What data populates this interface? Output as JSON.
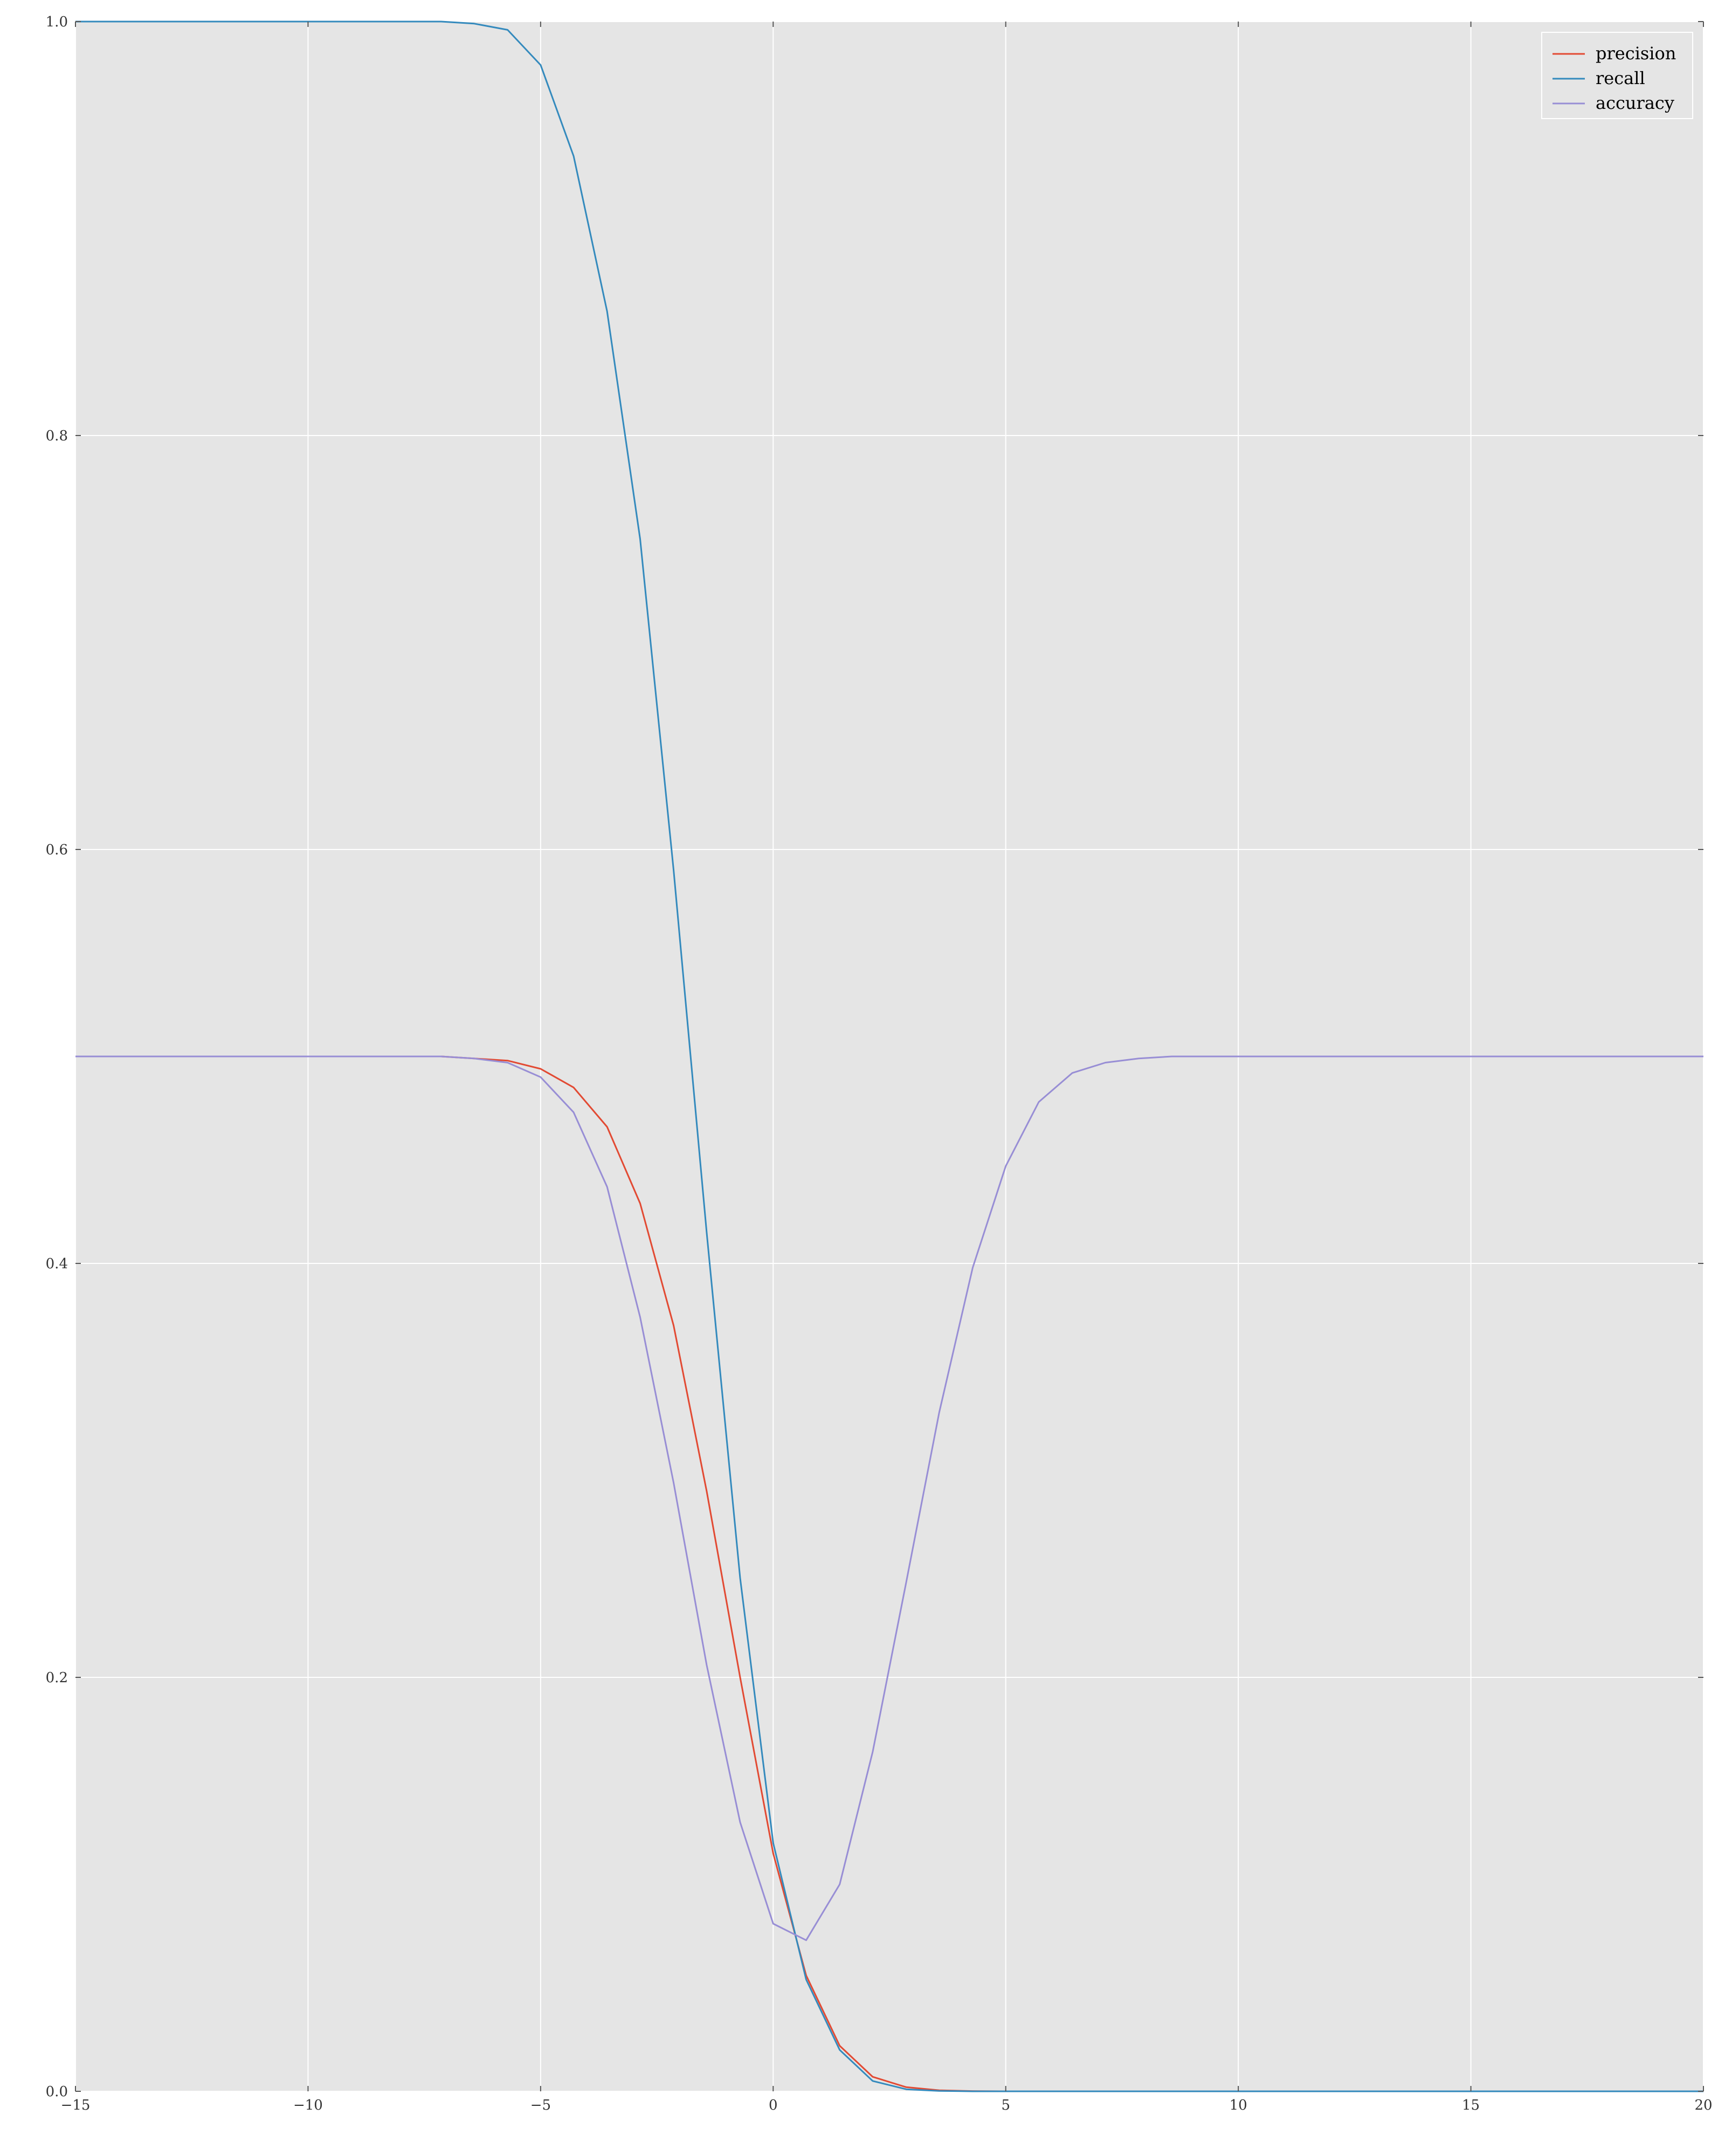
{
  "chart_data": {
    "type": "line",
    "title": "",
    "xlabel": "",
    "ylabel": "",
    "xlim": [
      -15,
      20
    ],
    "ylim": [
      0.0,
      1.0
    ],
    "xticks": [
      -15,
      -10,
      -5,
      0,
      5,
      10,
      15,
      20
    ],
    "xtick_labels": [
      "−15",
      "−10",
      "−5",
      "0",
      "5",
      "10",
      "15",
      "20"
    ],
    "yticks": [
      0.0,
      0.2,
      0.4,
      0.6,
      0.8,
      1.0
    ],
    "ytick_labels": [
      "0.0",
      "0.2",
      "0.4",
      "0.6",
      "0.8",
      "1.0"
    ],
    "grid": true,
    "legend_position": "top-right",
    "background": "#e5e5e5",
    "series": [
      {
        "name": "precision",
        "color": "#e24a33",
        "x": [
          -15,
          -14.29,
          -13.57,
          -12.86,
          -12.14,
          -11.43,
          -10.71,
          -10.0,
          -9.29,
          -8.57,
          -7.86,
          -7.14,
          -6.43,
          -5.71,
          -5.0,
          -4.29,
          -3.57,
          -2.86,
          -2.14,
          -1.43,
          -0.71,
          0.0,
          0.71,
          1.43,
          2.14,
          2.86,
          3.57,
          4.29,
          5.0,
          5.71,
          6.43,
          7.14,
          7.86,
          8.57,
          9.29,
          10.0,
          10.71,
          11.43,
          12.14,
          12.86,
          13.57,
          14.29,
          15.0,
          15.71,
          16.43,
          17.14,
          17.86,
          18.57,
          19.29,
          20.0
        ],
        "y": [
          0.5,
          0.5,
          0.5,
          0.5,
          0.5,
          0.5,
          0.5,
          0.5,
          0.5,
          0.5,
          0.5,
          0.5,
          0.499,
          0.498,
          0.494,
          0.485,
          0.466,
          0.429,
          0.37,
          0.29,
          0.2,
          0.115,
          0.056,
          0.022,
          0.007,
          0.002,
          0.0005,
          0.0001,
          0.0,
          0.0,
          0.0,
          0.0,
          0.0,
          0.0,
          0.0,
          0.0,
          0.0,
          0.0,
          0.0,
          0.0,
          0.0,
          0.0,
          0.0,
          0.0,
          0.0,
          0.0,
          0.0,
          0.0,
          0.0,
          0.0
        ]
      },
      {
        "name": "recall",
        "color": "#348abd",
        "x": [
          -15,
          -14.29,
          -13.57,
          -12.86,
          -12.14,
          -11.43,
          -10.71,
          -10.0,
          -9.29,
          -8.57,
          -7.86,
          -7.14,
          -6.43,
          -5.71,
          -5.0,
          -4.29,
          -3.57,
          -2.86,
          -2.14,
          -1.43,
          -0.71,
          0.0,
          0.71,
          1.43,
          2.14,
          2.86,
          3.57,
          4.29,
          5.0,
          5.71,
          6.43,
          7.14,
          7.86,
          8.57,
          9.29,
          10.0,
          10.71,
          11.43,
          12.14,
          12.86,
          13.57,
          14.29,
          15.0,
          15.71,
          16.43,
          17.14,
          17.86,
          18.57,
          19.29,
          20.0
        ],
        "y": [
          1.0,
          1.0,
          1.0,
          1.0,
          1.0,
          1.0,
          1.0,
          1.0,
          1.0,
          1.0,
          1.0,
          1.0,
          0.999,
          0.996,
          0.979,
          0.935,
          0.86,
          0.75,
          0.59,
          0.415,
          0.248,
          0.12,
          0.054,
          0.02,
          0.005,
          0.001,
          0.0002,
          0.0,
          0.0,
          0.0,
          0.0,
          0.0,
          0.0,
          0.0,
          0.0,
          0.0,
          0.0,
          0.0,
          0.0,
          0.0,
          0.0,
          0.0,
          0.0,
          0.0,
          0.0,
          0.0,
          0.0,
          0.0,
          0.0,
          0.0
        ]
      },
      {
        "name": "accuracy",
        "color": "#988ed5",
        "x": [
          -15,
          -14.29,
          -13.57,
          -12.86,
          -12.14,
          -11.43,
          -10.71,
          -10.0,
          -9.29,
          -8.57,
          -7.86,
          -7.14,
          -6.43,
          -5.71,
          -5.0,
          -4.29,
          -3.57,
          -2.86,
          -2.14,
          -1.43,
          -0.71,
          0.0,
          0.71,
          1.43,
          2.14,
          2.86,
          3.57,
          4.29,
          5.0,
          5.71,
          6.43,
          7.14,
          7.86,
          8.57,
          9.29,
          10.0,
          10.71,
          11.43,
          12.14,
          12.86,
          13.57,
          14.29,
          15.0,
          15.71,
          16.43,
          17.14,
          17.86,
          18.57,
          19.29,
          20.0
        ],
        "y": [
          0.5,
          0.5,
          0.5,
          0.5,
          0.5,
          0.5,
          0.5,
          0.5,
          0.5,
          0.5,
          0.5,
          0.5,
          0.499,
          0.497,
          0.49,
          0.473,
          0.437,
          0.374,
          0.294,
          0.206,
          0.13,
          0.081,
          0.073,
          0.1,
          0.164,
          0.246,
          0.328,
          0.398,
          0.447,
          0.478,
          0.492,
          0.497,
          0.499,
          0.5,
          0.5,
          0.5,
          0.5,
          0.5,
          0.5,
          0.5,
          0.5,
          0.5,
          0.5,
          0.5,
          0.5,
          0.5,
          0.5,
          0.5,
          0.5,
          0.5
        ]
      }
    ]
  }
}
